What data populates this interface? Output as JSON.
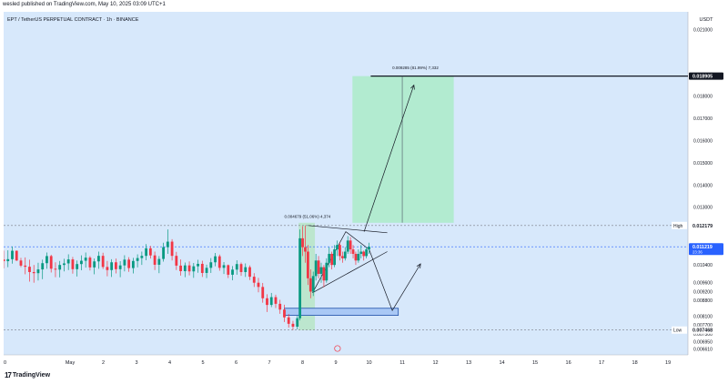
{
  "header": {
    "published": "wesled published on TradingView.com, May 10, 2025 03:09 UTC+1"
  },
  "footer": {
    "brand": "TradingView"
  },
  "chart_data": {
    "type": "candlestick",
    "title": "EPT / TetherUS PERPETUAL CONTRACT · 1h · BINANCE",
    "currency_label": "USDT",
    "ylim": [
      0.00635,
      0.0218
    ],
    "y_ticks": [
      0.021,
      0.018,
      0.017,
      0.016,
      0.015,
      0.014,
      0.013,
      0.0104,
      0.0096,
      0.0092,
      0.0088,
      0.0081,
      0.0077,
      0.0073,
      0.00695,
      0.00661
    ],
    "x_ticks": [
      "30",
      "May",
      "2",
      "3",
      "4",
      "5",
      "6",
      "7",
      "8",
      "9",
      "10",
      "11",
      "12",
      "13",
      "14",
      "15",
      "16",
      "17",
      "18",
      "19"
    ],
    "x_tick_days": [
      -1,
      1,
      2,
      3,
      4,
      5,
      6,
      7,
      8,
      9,
      10,
      11,
      12,
      13,
      14,
      15,
      16,
      17,
      18,
      19
    ],
    "x_range_days": [
      -1,
      19.6
    ],
    "price_labels": [
      {
        "kind": "target",
        "value": 0.018905,
        "text": "0.018905",
        "color": "#131722"
      },
      {
        "kind": "high",
        "value": 0.012179,
        "text": "0.012179",
        "prefix": "High",
        "color": "#ffffff"
      },
      {
        "kind": "current",
        "value": 0.011219,
        "text": "0.011219",
        "sub": "23:36",
        "color": "#2962ff"
      },
      {
        "kind": "low",
        "value": 0.007468,
        "text": "0.007468",
        "prefix": "Low",
        "color": "#ffffff"
      }
    ],
    "annotations": [
      {
        "text": "0.009285 (81.99%) 7,332",
        "day": 10.7,
        "value": 0.0191
      },
      {
        "text": "0.004679 (51.06%) 4,374",
        "day": 7.45,
        "value": 0.0124
      }
    ],
    "candles": [
      {
        "d": -1.0,
        "o": 0.01065,
        "h": 0.01105,
        "l": 0.01025,
        "c": 0.01057
      },
      {
        "d": -0.87,
        "o": 0.01057,
        "h": 0.01106,
        "l": 0.0103,
        "c": 0.01066
      },
      {
        "d": -0.74,
        "o": 0.01066,
        "h": 0.01123,
        "l": 0.01046,
        "c": 0.01104
      },
      {
        "d": -0.61,
        "o": 0.01104,
        "h": 0.01105,
        "l": 0.01058,
        "c": 0.0106
      },
      {
        "d": -0.48,
        "o": 0.0106,
        "h": 0.01072,
        "l": 0.0103,
        "c": 0.01037
      },
      {
        "d": -0.35,
        "o": 0.01037,
        "h": 0.01074,
        "l": 0.00998,
        "c": 0.01032
      },
      {
        "d": -0.22,
        "o": 0.01032,
        "h": 0.01064,
        "l": 0.00965,
        "c": 0.01008
      },
      {
        "d": -0.09,
        "o": 0.01008,
        "h": 0.0104,
        "l": 0.0096,
        "c": 0.01003
      },
      {
        "d": 0.04,
        "o": 0.01003,
        "h": 0.0105,
        "l": 0.0097,
        "c": 0.0102
      },
      {
        "d": 0.17,
        "o": 0.0102,
        "h": 0.01064,
        "l": 0.00976,
        "c": 0.01048
      },
      {
        "d": 0.3,
        "o": 0.01048,
        "h": 0.01096,
        "l": 0.01023,
        "c": 0.0108
      },
      {
        "d": 0.43,
        "o": 0.0108,
        "h": 0.01086,
        "l": 0.01006,
        "c": 0.01023
      },
      {
        "d": 0.56,
        "o": 0.01023,
        "h": 0.01052,
        "l": 0.00985,
        "c": 0.01019
      },
      {
        "d": 0.69,
        "o": 0.01019,
        "h": 0.01058,
        "l": 0.00984,
        "c": 0.0104
      },
      {
        "d": 0.82,
        "o": 0.0104,
        "h": 0.01068,
        "l": 0.01011,
        "c": 0.01047
      },
      {
        "d": 0.95,
        "o": 0.01047,
        "h": 0.01088,
        "l": 0.01017,
        "c": 0.01065
      },
      {
        "d": 1.08,
        "o": 0.01065,
        "h": 0.01076,
        "l": 0.01001,
        "c": 0.01021
      },
      {
        "d": 1.21,
        "o": 0.01021,
        "h": 0.0106,
        "l": 0.00988,
        "c": 0.01044
      },
      {
        "d": 1.34,
        "o": 0.01044,
        "h": 0.01083,
        "l": 0.01016,
        "c": 0.01059
      },
      {
        "d": 1.47,
        "o": 0.01059,
        "h": 0.01096,
        "l": 0.01028,
        "c": 0.01073
      },
      {
        "d": 1.6,
        "o": 0.01073,
        "h": 0.0108,
        "l": 0.01015,
        "c": 0.01029
      },
      {
        "d": 1.73,
        "o": 0.01029,
        "h": 0.01069,
        "l": 0.00998,
        "c": 0.01056
      },
      {
        "d": 1.86,
        "o": 0.01056,
        "h": 0.011,
        "l": 0.01023,
        "c": 0.01081
      },
      {
        "d": 1.99,
        "o": 0.01081,
        "h": 0.01095,
        "l": 0.01022,
        "c": 0.01031
      },
      {
        "d": 2.12,
        "o": 0.01031,
        "h": 0.01058,
        "l": 0.00989,
        "c": 0.01017
      },
      {
        "d": 2.25,
        "o": 0.01017,
        "h": 0.01066,
        "l": 0.00986,
        "c": 0.01052
      },
      {
        "d": 2.38,
        "o": 0.01052,
        "h": 0.01069,
        "l": 0.01002,
        "c": 0.01021
      },
      {
        "d": 2.51,
        "o": 0.01021,
        "h": 0.01057,
        "l": 0.00985,
        "c": 0.01038
      },
      {
        "d": 2.64,
        "o": 0.01038,
        "h": 0.01084,
        "l": 0.01011,
        "c": 0.01064
      },
      {
        "d": 2.77,
        "o": 0.01064,
        "h": 0.01075,
        "l": 0.01009,
        "c": 0.01026
      },
      {
        "d": 2.9,
        "o": 0.01026,
        "h": 0.01072,
        "l": 0.01002,
        "c": 0.01058
      },
      {
        "d": 3.03,
        "o": 0.01058,
        "h": 0.01088,
        "l": 0.01029,
        "c": 0.01071
      },
      {
        "d": 3.16,
        "o": 0.01071,
        "h": 0.011,
        "l": 0.0104,
        "c": 0.01081
      },
      {
        "d": 3.29,
        "o": 0.01081,
        "h": 0.01134,
        "l": 0.01061,
        "c": 0.01115
      },
      {
        "d": 3.42,
        "o": 0.01115,
        "h": 0.01126,
        "l": 0.01069,
        "c": 0.01083
      },
      {
        "d": 3.55,
        "o": 0.01083,
        "h": 0.011,
        "l": 0.01017,
        "c": 0.01041
      },
      {
        "d": 3.68,
        "o": 0.01041,
        "h": 0.0108,
        "l": 0.01003,
        "c": 0.01067
      },
      {
        "d": 3.81,
        "o": 0.01067,
        "h": 0.0114,
        "l": 0.01055,
        "c": 0.0112
      },
      {
        "d": 3.94,
        "o": 0.0112,
        "h": 0.012,
        "l": 0.0109,
        "c": 0.01145
      },
      {
        "d": 4.07,
        "o": 0.01145,
        "h": 0.01156,
        "l": 0.0106,
        "c": 0.01081
      },
      {
        "d": 4.2,
        "o": 0.01081,
        "h": 0.01099,
        "l": 0.01017,
        "c": 0.01037
      },
      {
        "d": 4.33,
        "o": 0.01037,
        "h": 0.01065,
        "l": 0.00992,
        "c": 0.01012
      },
      {
        "d": 4.46,
        "o": 0.01012,
        "h": 0.01051,
        "l": 0.00985,
        "c": 0.01038
      },
      {
        "d": 4.59,
        "o": 0.01038,
        "h": 0.01056,
        "l": 0.00993,
        "c": 0.01011
      },
      {
        "d": 4.72,
        "o": 0.01011,
        "h": 0.01049,
        "l": 0.00982,
        "c": 0.01034
      },
      {
        "d": 4.85,
        "o": 0.01034,
        "h": 0.01063,
        "l": 0.01005,
        "c": 0.01045
      },
      {
        "d": 4.98,
        "o": 0.01045,
        "h": 0.01059,
        "l": 0.00986,
        "c": 0.01004
      },
      {
        "d": 5.11,
        "o": 0.01004,
        "h": 0.01041,
        "l": 0.00981,
        "c": 0.01027
      },
      {
        "d": 5.24,
        "o": 0.01027,
        "h": 0.01071,
        "l": 0.01004,
        "c": 0.01052
      },
      {
        "d": 5.37,
        "o": 0.01052,
        "h": 0.01094,
        "l": 0.01034,
        "c": 0.01079
      },
      {
        "d": 5.5,
        "o": 0.01079,
        "h": 0.01087,
        "l": 0.01014,
        "c": 0.01027
      },
      {
        "d": 5.63,
        "o": 0.01027,
        "h": 0.01053,
        "l": 0.00999,
        "c": 0.01039
      },
      {
        "d": 5.76,
        "o": 0.01039,
        "h": 0.01042,
        "l": 0.00981,
        "c": 0.00996
      },
      {
        "d": 5.89,
        "o": 0.00996,
        "h": 0.01035,
        "l": 0.00971,
        "c": 0.01019
      },
      {
        "d": 6.02,
        "o": 0.01019,
        "h": 0.01061,
        "l": 0.00996,
        "c": 0.01044
      },
      {
        "d": 6.15,
        "o": 0.01044,
        "h": 0.01051,
        "l": 0.00991,
        "c": 0.01008
      },
      {
        "d": 6.28,
        "o": 0.01008,
        "h": 0.01047,
        "l": 0.00986,
        "c": 0.0103
      },
      {
        "d": 6.41,
        "o": 0.0103,
        "h": 0.01038,
        "l": 0.00972,
        "c": 0.00987
      },
      {
        "d": 6.54,
        "o": 0.00987,
        "h": 0.01003,
        "l": 0.00941,
        "c": 0.0096
      },
      {
        "d": 6.67,
        "o": 0.0096,
        "h": 0.00982,
        "l": 0.00917,
        "c": 0.00941
      },
      {
        "d": 6.8,
        "o": 0.00941,
        "h": 0.00959,
        "l": 0.0087,
        "c": 0.0089
      },
      {
        "d": 6.93,
        "o": 0.0089,
        "h": 0.00908,
        "l": 0.00828,
        "c": 0.0086
      },
      {
        "d": 7.06,
        "o": 0.0086,
        "h": 0.00914,
        "l": 0.0085,
        "c": 0.00895
      },
      {
        "d": 7.19,
        "o": 0.00895,
        "h": 0.00906,
        "l": 0.00846,
        "c": 0.00865
      },
      {
        "d": 7.32,
        "o": 0.00865,
        "h": 0.00883,
        "l": 0.0082,
        "c": 0.00839
      },
      {
        "d": 7.45,
        "o": 0.00839,
        "h": 0.00861,
        "l": 0.00783,
        "c": 0.00804
      },
      {
        "d": 7.58,
        "o": 0.00804,
        "h": 0.00819,
        "l": 0.00758,
        "c": 0.00775
      },
      {
        "d": 7.71,
        "o": 0.00775,
        "h": 0.00788,
        "l": 0.00747,
        "c": 0.00762
      },
      {
        "d": 7.84,
        "o": 0.00762,
        "h": 0.0081,
        "l": 0.0075,
        "c": 0.008
      },
      {
        "d": 7.92,
        "o": 0.008,
        "h": 0.012,
        "l": 0.0079,
        "c": 0.0116
      },
      {
        "d": 8.0,
        "o": 0.0116,
        "h": 0.01215,
        "l": 0.0108,
        "c": 0.0112
      },
      {
        "d": 8.08,
        "o": 0.0112,
        "h": 0.01218,
        "l": 0.0105,
        "c": 0.011
      },
      {
        "d": 8.16,
        "o": 0.011,
        "h": 0.0113,
        "l": 0.0095,
        "c": 0.0098
      },
      {
        "d": 8.24,
        "o": 0.0098,
        "h": 0.0102,
        "l": 0.0089,
        "c": 0.0092
      },
      {
        "d": 8.32,
        "o": 0.0092,
        "h": 0.0101,
        "l": 0.009,
        "c": 0.0099
      },
      {
        "d": 8.4,
        "o": 0.0099,
        "h": 0.0109,
        "l": 0.0097,
        "c": 0.0106
      },
      {
        "d": 8.48,
        "o": 0.0106,
        "h": 0.0108,
        "l": 0.0098,
        "c": 0.01
      },
      {
        "d": 8.56,
        "o": 0.01,
        "h": 0.0105,
        "l": 0.0096,
        "c": 0.0103
      },
      {
        "d": 8.64,
        "o": 0.0103,
        "h": 0.0104,
        "l": 0.0094,
        "c": 0.0097
      },
      {
        "d": 8.72,
        "o": 0.0097,
        "h": 0.0107,
        "l": 0.0096,
        "c": 0.0105
      },
      {
        "d": 8.8,
        "o": 0.0105,
        "h": 0.0112,
        "l": 0.0103,
        "c": 0.0109
      },
      {
        "d": 8.88,
        "o": 0.0109,
        "h": 0.011,
        "l": 0.0102,
        "c": 0.0104
      },
      {
        "d": 8.96,
        "o": 0.0104,
        "h": 0.0113,
        "l": 0.0103,
        "c": 0.0111
      },
      {
        "d": 9.04,
        "o": 0.0111,
        "h": 0.0115,
        "l": 0.0108,
        "c": 0.0113
      },
      {
        "d": 9.12,
        "o": 0.0113,
        "h": 0.0114,
        "l": 0.0106,
        "c": 0.0108
      },
      {
        "d": 9.2,
        "o": 0.0108,
        "h": 0.011,
        "l": 0.0105,
        "c": 0.0107
      },
      {
        "d": 9.28,
        "o": 0.0107,
        "h": 0.0112,
        "l": 0.0106,
        "c": 0.011
      },
      {
        "d": 9.36,
        "o": 0.011,
        "h": 0.0117,
        "l": 0.0109,
        "c": 0.0115
      },
      {
        "d": 9.44,
        "o": 0.0115,
        "h": 0.01165,
        "l": 0.0109,
        "c": 0.0111
      },
      {
        "d": 9.52,
        "o": 0.0111,
        "h": 0.0113,
        "l": 0.0107,
        "c": 0.0109
      },
      {
        "d": 9.6,
        "o": 0.0109,
        "h": 0.011,
        "l": 0.0104,
        "c": 0.0106
      },
      {
        "d": 9.68,
        "o": 0.0106,
        "h": 0.0111,
        "l": 0.0105,
        "c": 0.0109
      },
      {
        "d": 9.76,
        "o": 0.0109,
        "h": 0.0113,
        "l": 0.0107,
        "c": 0.011
      },
      {
        "d": 9.84,
        "o": 0.011,
        "h": 0.01105,
        "l": 0.0106,
        "c": 0.0108
      },
      {
        "d": 9.92,
        "o": 0.0108,
        "h": 0.0112,
        "l": 0.0107,
        "c": 0.0111
      },
      {
        "d": 10.0,
        "o": 0.0111,
        "h": 0.0114,
        "l": 0.0109,
        "c": 0.011219
      }
    ],
    "drawings": {
      "target_zone": {
        "d0": 9.5,
        "d1": 12.55,
        "top": 0.018905,
        "bottom": 0.0123,
        "color": "#b2ebd0"
      },
      "pump_zone": {
        "d0": 7.88,
        "d1": 8.37,
        "top": 0.0123,
        "bottom": 0.007468,
        "color": "#b9e6c9"
      },
      "demand_box": {
        "d0": 7.45,
        "d1": 10.88,
        "top": 0.00845,
        "bottom": 0.00813,
        "color": "#4a86e8"
      },
      "target_line": {
        "value": 0.018905,
        "d0": 10.05,
        "d1": 19.6
      },
      "high_line": {
        "value": 0.012179
      },
      "current_line": {
        "value": 0.011219
      },
      "low_line": {
        "value": 0.007468
      },
      "measure_line": {
        "d": 11.0,
        "top": 0.018905,
        "bottom": 0.0123
      },
      "triangle_upper": [
        [
          8.16,
          0.012179
        ],
        [
          10.55,
          0.01185
        ]
      ],
      "triangle_lower": [
        [
          8.3,
          0.00915
        ],
        [
          10.55,
          0.011
        ]
      ],
      "wedge_path": [
        [
          8.3,
          0.00915
        ],
        [
          9.3,
          0.0119
        ],
        [
          10.0,
          0.0111
        ]
      ],
      "arrow_up": [
        [
          9.85,
          0.0119
        ],
        [
          11.35,
          0.0185
        ]
      ],
      "arrow_drop": [
        [
          10.0,
          0.0111
        ],
        [
          10.7,
          0.00835
        ],
        [
          11.55,
          0.01045
        ]
      ]
    },
    "colors": {
      "up": "#089981",
      "down": "#f23645",
      "bg": "#d7e8fb",
      "wick": "#131722"
    }
  }
}
